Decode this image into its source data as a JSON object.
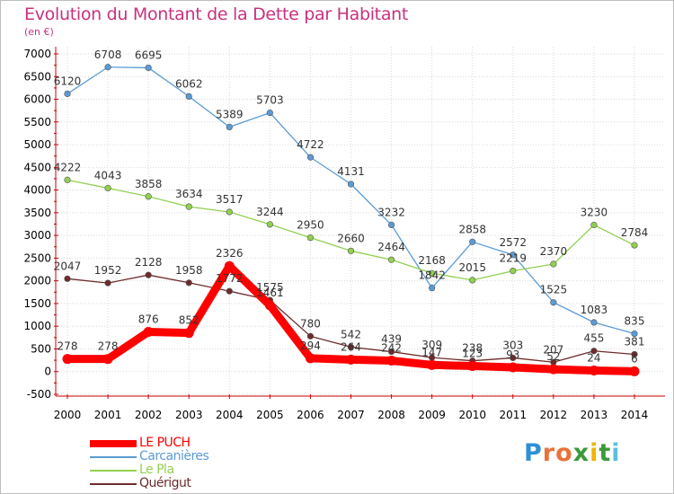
{
  "header": {
    "title": "Evolution du Montant de la Dette par Habitant",
    "subtitle": "(en €)"
  },
  "chart_data": {
    "type": "line",
    "x": [
      2000,
      2001,
      2002,
      2003,
      2004,
      2005,
      2006,
      2007,
      2008,
      2009,
      2010,
      2011,
      2012,
      2013,
      2014
    ],
    "ylim": [
      -500,
      7000
    ],
    "yticks": [
      -500,
      0,
      500,
      1000,
      1500,
      2000,
      2500,
      3000,
      3500,
      4000,
      4500,
      5000,
      5500,
      6000,
      6500,
      7000
    ],
    "grid": true,
    "legend_position": "bottom-left",
    "series": [
      {
        "name": "LE PUCH",
        "color": "#ff0000",
        "values": [
          278,
          278,
          876,
          852,
          2326,
          1461,
          294,
          264,
          242,
          147,
          123,
          93,
          52,
          24,
          6
        ],
        "labels": [
          "278",
          "278",
          "876",
          "852",
          "2326",
          "1461",
          "294",
          "264",
          "242",
          "147",
          "123",
          "93",
          "52",
          "24",
          "6"
        ]
      },
      {
        "name": "Carcanières",
        "color": "#5b9bd5",
        "values": [
          6120,
          6708,
          6695,
          6062,
          5389,
          5703,
          4722,
          4131,
          3232,
          1842,
          2858,
          2572,
          1525,
          1083,
          835
        ],
        "labels": [
          "6120",
          "6708",
          "6695",
          "6062",
          "5389",
          "5703",
          "4722",
          "4131",
          "3232",
          "1842",
          "2858",
          "2572",
          "1525",
          "1083",
          "835"
        ]
      },
      {
        "name": "Le Pla",
        "color": "#92d050",
        "values": [
          4222,
          4043,
          3858,
          3634,
          3517,
          3244,
          2950,
          2660,
          2464,
          2168,
          2015,
          2219,
          2370,
          3230,
          2784
        ],
        "labels": [
          "4222",
          "4043",
          "3858",
          "3634",
          "3517",
          "3244",
          "2950",
          "2660",
          "2464",
          "2168",
          "2015",
          "2219",
          "2370",
          "3230",
          "2784"
        ]
      },
      {
        "name": "Quérigut",
        "color": "#6e2b2b",
        "values": [
          2047,
          1952,
          2128,
          1958,
          1772,
          1575,
          780,
          542,
          439,
          309,
          238,
          303,
          207,
          455,
          381
        ],
        "labels": [
          "2047",
          "1952",
          "2128",
          "1958",
          "1772",
          "1575",
          "780",
          "542",
          "439",
          "309",
          "238",
          "303",
          "207",
          "455",
          "381"
        ]
      }
    ]
  },
  "logo": {
    "letters": [
      "P",
      "r",
      "o",
      "x",
      "i",
      "t",
      "i"
    ],
    "colors": [
      "#2f8fd6",
      "#e8733a",
      "#e8733a",
      "#3a9a3a",
      "#f0b400",
      "#3a9a3a",
      "#5bc0de"
    ]
  }
}
